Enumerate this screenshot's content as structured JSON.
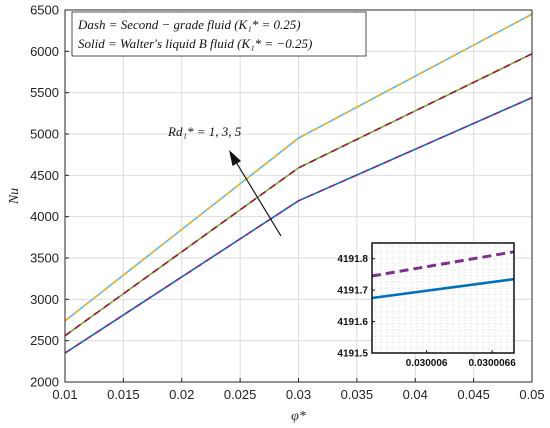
{
  "chart_data": {
    "type": "line",
    "xlabel": "φ*",
    "ylabel": "Nu",
    "xlim": [
      0.01,
      0.05
    ],
    "ylim": [
      2000,
      6500
    ],
    "x_ticks": [
      "0.01",
      "0.015",
      "0.02",
      "0.025",
      "0.03",
      "0.035",
      "0.04",
      "0.045",
      "0.05"
    ],
    "y_ticks": [
      "2000",
      "2500",
      "3000",
      "3500",
      "4000",
      "4500",
      "5000",
      "5500",
      "6000",
      "6500"
    ],
    "grid": true,
    "legend": {
      "placement": "top-left",
      "lines": [
        "Dash = Second − grade fluid (K₁* = 0.25)",
        "Solid = Walter's liquid B fluid (K₁* = −0.25)"
      ]
    },
    "annotation": {
      "text": "Rd₁* = 1, 3, 5"
    },
    "x": [
      0.01,
      0.03,
      0.05
    ],
    "series": [
      {
        "values": [
          2350,
          4192,
          5440
        ],
        "color": "#0072BD",
        "style": "solid"
      },
      {
        "values": [
          2350,
          4192,
          5440
        ],
        "color": "#7E2F8E",
        "style": "dashed"
      },
      {
        "values": [
          2560,
          4590,
          5970
        ],
        "color": "#77AC30",
        "style": "solid"
      },
      {
        "values": [
          2560,
          4590,
          5970
        ],
        "color": "#A2142F",
        "style": "dashed"
      },
      {
        "values": [
          2740,
          4950,
          6450
        ],
        "color": "#4DBEEE",
        "style": "solid"
      },
      {
        "values": [
          2740,
          4950,
          6450
        ],
        "color": "#EDB120",
        "style": "dashed"
      }
    ],
    "inset": {
      "xlim": [
        0.0300055,
        0.0300068
      ],
      "ylim": [
        4191.5,
        4191.85
      ],
      "x_ticks": [
        "0.030006",
        "0.0300066"
      ],
      "y_ticks": [
        "4191.5",
        "4191.6",
        "4191.7",
        "4191.8"
      ],
      "series": [
        {
          "x": [
            0.0300055,
            0.0300068
          ],
          "values": [
            4191.745,
            4191.822
          ],
          "color": "#7E2F8E",
          "style": "dashed"
        },
        {
          "x": [
            0.0300055,
            0.0300068
          ],
          "values": [
            4191.675,
            4191.735
          ],
          "color": "#0072BD",
          "style": "solid"
        }
      ]
    }
  }
}
